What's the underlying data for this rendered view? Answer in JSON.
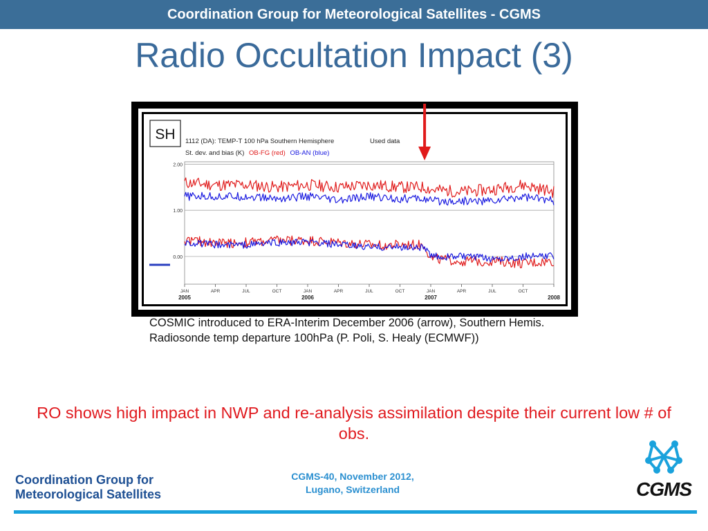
{
  "header": {
    "title": "Coordination Group for Meteorological Satellites - CGMS"
  },
  "slide": {
    "title": "Radio Occultation Impact (3)",
    "caption": "COSMIC introduced to ERA-Interim December 2006 (arrow), Southern Hemis. Radiosonde temp departure 100hPa (P. Poli, S. Healy (ECMWF))",
    "highlight": "RO shows high impact in NWP and re-analysis assimilation despite their current low # of obs."
  },
  "chart_data": {
    "type": "line",
    "badge": "SH",
    "title_line1": "1112 (DA): TEMP-T  100 hPa  Southern Hemisphere",
    "used_data": "Used data",
    "title_line2_prefix": "St. dev. and bias (K)",
    "legend": {
      "obfg": "OB-FG (red)",
      "oban": "OB-AN (blue)"
    },
    "colors": {
      "obfg": "#e01a1a",
      "oban": "#1a1ae0",
      "arrow": "#e01a1a"
    },
    "ylim": [
      -0.6,
      2.05
    ],
    "yticks": [
      {
        "value": 2.0,
        "label": "2.00"
      },
      {
        "value": 1.0,
        "label": "1.00"
      },
      {
        "value": 0.0,
        "label": "0.00"
      }
    ],
    "xlim": [
      2005.0,
      2008.0
    ],
    "xticks": [
      {
        "t": 2005.0,
        "label": "JAN",
        "year": "2005"
      },
      {
        "t": 2005.25,
        "label": "APR"
      },
      {
        "t": 2005.5,
        "label": "JUL"
      },
      {
        "t": 2005.75,
        "label": "OCT"
      },
      {
        "t": 2006.0,
        "label": "JAN",
        "year": "2006"
      },
      {
        "t": 2006.25,
        "label": "APR"
      },
      {
        "t": 2006.5,
        "label": "JUL"
      },
      {
        "t": 2006.75,
        "label": "OCT"
      },
      {
        "t": 2007.0,
        "label": "JAN",
        "year": "2007"
      },
      {
        "t": 2007.25,
        "label": "APR"
      },
      {
        "t": 2007.5,
        "label": "JUL"
      },
      {
        "t": 2007.75,
        "label": "OCT"
      },
      {
        "t": 2008.0,
        "label": "",
        "year": "2008"
      }
    ],
    "arrow_t": 2006.95,
    "series": [
      {
        "key": "obfg_stdev",
        "color_key": "obfg",
        "x": [
          2005.0,
          2005.25,
          2005.5,
          2005.75,
          2006.0,
          2006.25,
          2006.5,
          2006.75,
          2006.95,
          2007.0,
          2007.25,
          2007.5,
          2007.75,
          2008.0
        ],
        "y": [
          1.6,
          1.55,
          1.55,
          1.5,
          1.55,
          1.5,
          1.55,
          1.5,
          1.5,
          1.45,
          1.4,
          1.45,
          1.55,
          1.4
        ]
      },
      {
        "key": "oban_stdev",
        "color_key": "oban",
        "x": [
          2005.0,
          2005.25,
          2005.5,
          2005.75,
          2006.0,
          2006.25,
          2006.5,
          2006.75,
          2006.95,
          2007.0,
          2007.25,
          2007.5,
          2007.75,
          2008.0
        ],
        "y": [
          1.3,
          1.3,
          1.3,
          1.25,
          1.3,
          1.2,
          1.3,
          1.25,
          1.25,
          1.2,
          1.2,
          1.2,
          1.3,
          1.2
        ]
      },
      {
        "key": "obfg_bias",
        "color_key": "obfg",
        "x": [
          2005.0,
          2005.25,
          2005.5,
          2005.75,
          2006.0,
          2006.25,
          2006.5,
          2006.75,
          2006.95,
          2007.0,
          2007.25,
          2007.5,
          2007.75,
          2008.0
        ],
        "y": [
          0.35,
          0.3,
          0.3,
          0.35,
          0.35,
          0.3,
          0.25,
          0.25,
          0.25,
          -0.05,
          -0.1,
          -0.1,
          -0.15,
          -0.1
        ]
      },
      {
        "key": "oban_bias",
        "color_key": "oban",
        "x": [
          2005.0,
          2005.25,
          2005.5,
          2005.75,
          2006.0,
          2006.25,
          2006.5,
          2006.75,
          2006.95,
          2007.0,
          2007.25,
          2007.5,
          2007.75,
          2008.0
        ],
        "y": [
          0.3,
          0.25,
          0.25,
          0.3,
          0.3,
          0.25,
          0.2,
          0.2,
          0.2,
          0.0,
          0.0,
          -0.05,
          0.0,
          0.0
        ]
      }
    ]
  },
  "footer": {
    "org_line1": "Coordination Group for",
    "org_line2": "Meteorological Satellites",
    "event_line1": "CGMS-40, November 2012,",
    "event_line2": "Lugano, Switzerland",
    "logo_text": "CGMS"
  }
}
